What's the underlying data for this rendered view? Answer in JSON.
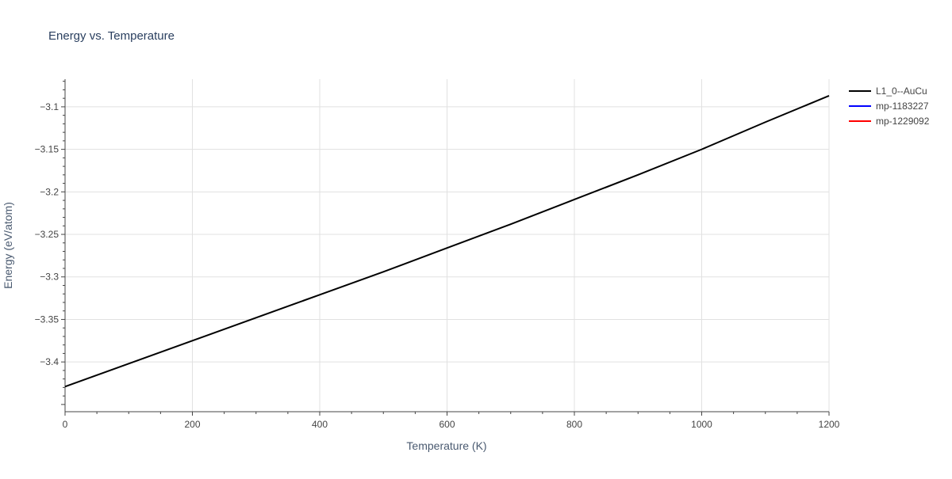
{
  "chart_data": {
    "type": "line",
    "title": "Energy vs. Temperature",
    "xlabel": "Temperature (K)",
    "ylabel": "Energy (eV/atom)",
    "xlim": [
      0,
      1200
    ],
    "ylim": [
      -3.4585,
      -3.0675
    ],
    "x_ticks": [
      0,
      200,
      400,
      600,
      800,
      1000,
      1200
    ],
    "x_tick_labels": [
      "0",
      "200",
      "400",
      "600",
      "800",
      "1000",
      "1200"
    ],
    "y_ticks": [
      -3.1,
      -3.15,
      -3.2,
      -3.25,
      -3.3,
      -3.35,
      -3.4
    ],
    "y_tick_labels": [
      "−3.1",
      "−3.15",
      "−3.2",
      "−3.25",
      "−3.3",
      "−3.35",
      "−3.4"
    ],
    "grid": true,
    "legend_position": "top-right",
    "series": [
      {
        "name": "L1_0--AuCu",
        "color": "#000000",
        "x": [
          0,
          100,
          200,
          300,
          400,
          500,
          600,
          700,
          800,
          900,
          1000,
          1100,
          1200
        ],
        "y": [
          -3.429,
          -3.402,
          -3.375,
          -3.348,
          -3.321,
          -3.294,
          -3.266,
          -3.238,
          -3.209,
          -3.18,
          -3.15,
          -3.118,
          -3.087
        ]
      },
      {
        "name": "mp-1183227",
        "color": "#0000ff",
        "x": [],
        "y": []
      },
      {
        "name": "mp-1229092",
        "color": "#ff0000",
        "x": [],
        "y": []
      }
    ]
  }
}
